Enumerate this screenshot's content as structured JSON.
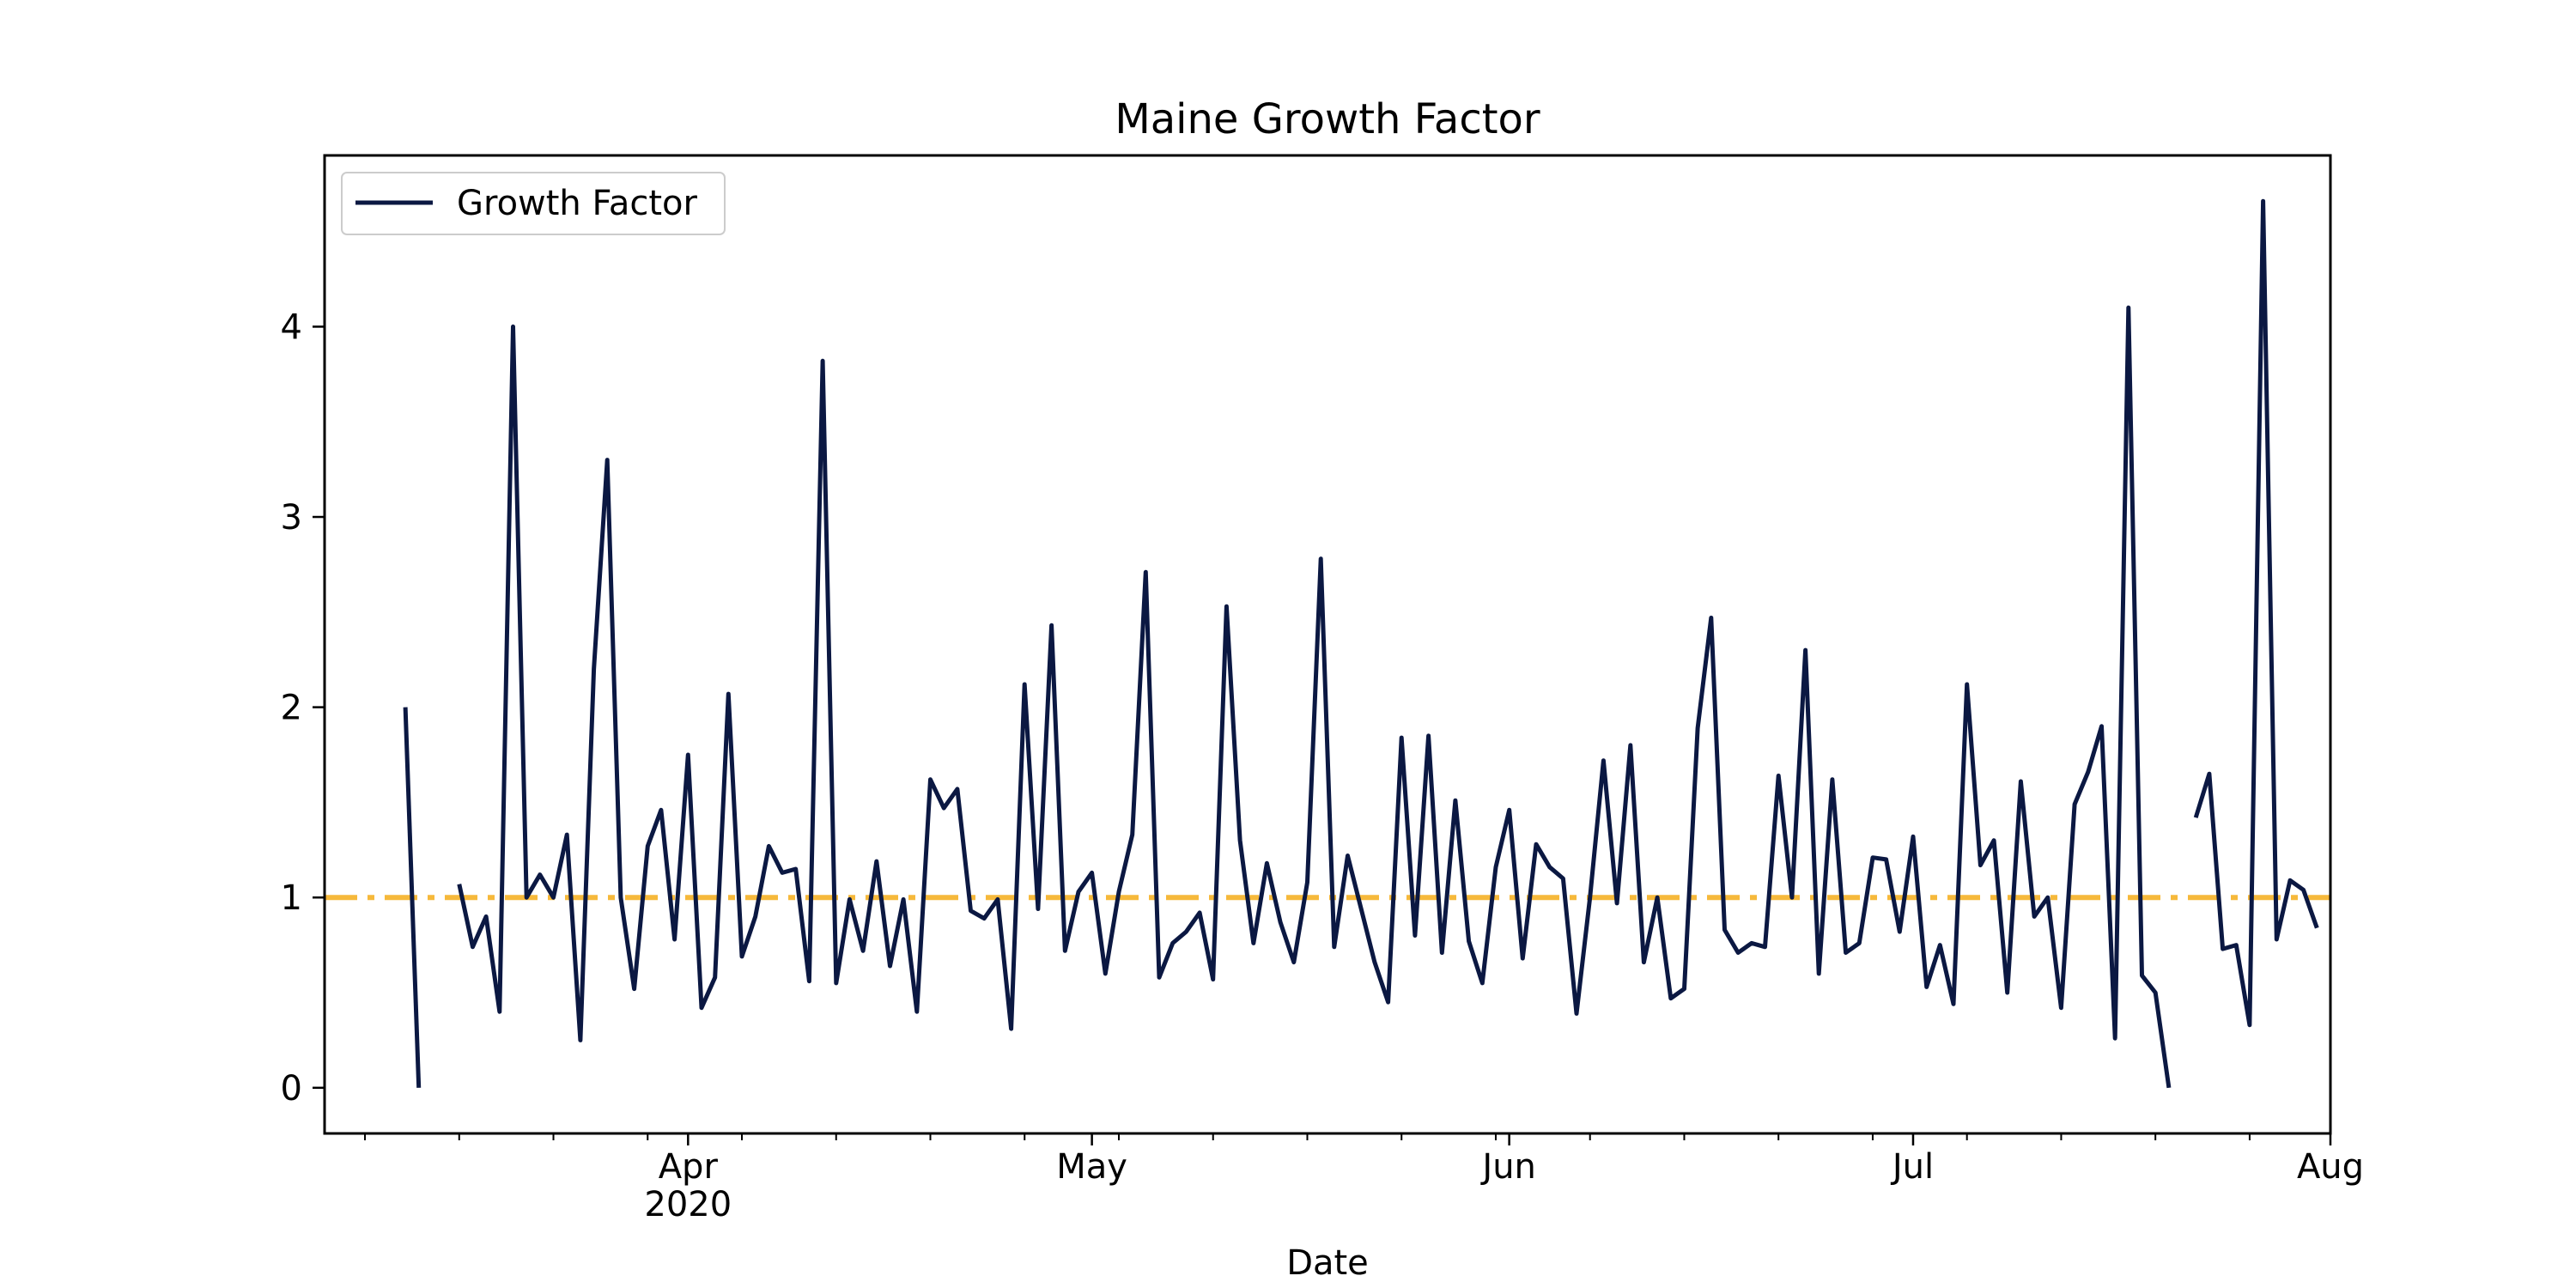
{
  "chart_data": {
    "type": "line",
    "title": "Maine Growth Factor",
    "xlabel": "Date",
    "ylabel": "",
    "x_start": "2020-03-05",
    "x_end": "2020-08-01",
    "ylim": [
      -0.24,
      4.9
    ],
    "y_ticks": [
      0,
      1,
      2,
      3,
      4
    ],
    "x_ticks": [
      {
        "date": "2020-04-01",
        "label": "Apr",
        "sublabel": "2020"
      },
      {
        "date": "2020-05-01",
        "label": "May",
        "sublabel": ""
      },
      {
        "date": "2020-06-01",
        "label": "Jun",
        "sublabel": ""
      },
      {
        "date": "2020-07-01",
        "label": "Jul",
        "sublabel": ""
      },
      {
        "date": "2020-08-01",
        "label": "Aug",
        "sublabel": ""
      }
    ],
    "grid": false,
    "legend_position": "top-left",
    "series": [
      {
        "name": "Growth Factor",
        "color": "#0b1842",
        "x_start": "2020-03-11",
        "values": [
          2.0,
          0.0,
          null,
          null,
          1.07,
          0.74,
          0.9,
          0.4,
          4.0,
          1.0,
          1.12,
          1.0,
          1.33,
          0.25,
          2.2,
          3.3,
          1.0,
          0.52,
          1.27,
          1.46,
          0.78,
          1.75,
          0.42,
          0.58,
          2.07,
          0.69,
          0.9,
          1.27,
          1.13,
          1.15,
          0.56,
          3.82,
          0.55,
          0.99,
          0.72,
          1.19,
          0.64,
          0.99,
          0.4,
          1.62,
          1.47,
          1.57,
          0.93,
          0.89,
          0.99,
          0.31,
          2.12,
          0.94,
          2.43,
          0.72,
          1.03,
          1.13,
          0.6,
          1.03,
          1.33,
          2.71,
          0.58,
          0.76,
          0.82,
          0.92,
          0.57,
          2.53,
          1.3,
          0.76,
          1.18,
          0.87,
          0.66,
          1.08,
          2.78,
          0.74,
          1.22,
          0.94,
          0.66,
          0.45,
          1.84,
          0.8,
          1.85,
          0.71,
          1.51,
          0.77,
          0.55,
          1.16,
          1.46,
          0.68,
          1.28,
          1.16,
          1.1,
          0.39,
          1.0,
          1.72,
          0.97,
          1.8,
          0.66,
          1.0,
          0.47,
          0.52,
          1.89,
          2.47,
          0.83,
          0.71,
          0.76,
          0.74,
          1.64,
          1.0,
          2.3,
          0.6,
          1.62,
          0.71,
          0.76,
          1.21,
          1.2,
          0.82,
          1.32,
          0.53,
          0.75,
          0.44,
          2.12,
          1.17,
          1.3,
          0.5,
          1.61,
          0.9,
          1.0,
          0.42,
          1.49,
          1.66,
          1.9,
          0.26,
          4.1,
          0.59,
          0.5,
          0.0,
          null,
          1.42,
          1.65,
          0.73,
          0.75,
          0.33,
          4.66,
          0.78,
          1.09,
          1.04,
          0.84
        ]
      }
    ],
    "reference_line": {
      "y": 1,
      "color": "#f6b93b",
      "style": "dash-dot"
    }
  }
}
